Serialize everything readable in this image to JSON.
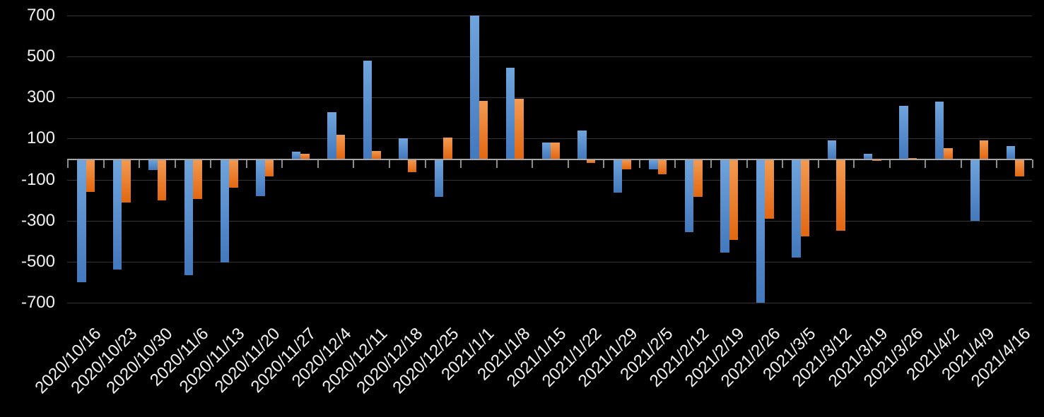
{
  "chart_data": {
    "type": "bar",
    "title": "",
    "xlabel": "",
    "ylabel": "",
    "categories": [
      "2020/10/16",
      "2020/10/23",
      "2020/10/30",
      "2020/11/6",
      "2020/11/13",
      "2020/11/20",
      "2020/11/27",
      "2020/12/4",
      "2020/12/11",
      "2020/12/18",
      "2020/12/25",
      "2021/1/1",
      "2021/1/8",
      "2021/1/15",
      "2021/1/22",
      "2021/1/29",
      "2021/2/5",
      "2021/2/12",
      "2021/2/19",
      "2021/2/26",
      "2021/3/5",
      "2021/3/12",
      "2021/3/19",
      "2021/3/26",
      "2021/4/2",
      "2021/4/9",
      "2021/4/16"
    ],
    "series": [
      {
        "name": "blue-series",
        "values": [
          -600,
          -540,
          -55,
          -565,
          -505,
          -180,
          35,
          230,
          480,
          100,
          -185,
          700,
          445,
          80,
          140,
          -165,
          -50,
          -355,
          -455,
          -700,
          -480,
          90,
          25,
          260,
          280,
          -300,
          65
        ]
      },
      {
        "name": "orange-series",
        "values": [
          -160,
          -210,
          -200,
          -195,
          -140,
          -85,
          25,
          120,
          40,
          -65,
          105,
          285,
          295,
          80,
          -18,
          -50,
          -75,
          -185,
          -395,
          -290,
          -375,
          -350,
          -10,
          5,
          55,
          90,
          -85
        ]
      }
    ],
    "y_ticks": [
      700,
      500,
      300,
      100,
      -100,
      -300,
      -500,
      -700
    ],
    "ylim": [
      -700,
      700
    ],
    "grid": true,
    "legend_position": "none",
    "x_label_rotation_deg": -45,
    "colors": {
      "background": "#000000",
      "blue_bar_top": "#6FA4DC",
      "blue_bar_bottom": "#4379BD",
      "orange_bar_top": "#F29A52",
      "orange_bar_bottom": "#E26711",
      "gridline": "#343434",
      "zero_axis": "#A6A6A6",
      "tick": "#8C8C8C",
      "label_text": "#F2F2F2"
    }
  }
}
